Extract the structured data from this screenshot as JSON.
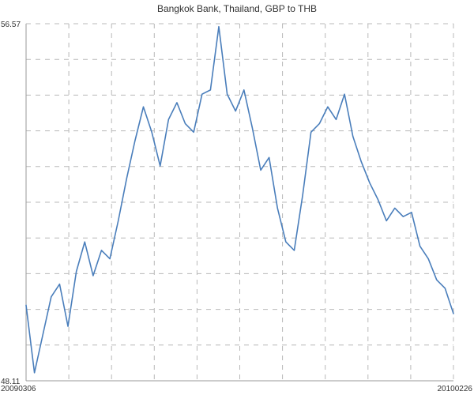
{
  "chart_data": {
    "type": "line",
    "title": "Bangkok Bank, Thailand, GBP to THB",
    "xlabel": "",
    "ylabel": "",
    "x_tick_labels": [
      "20090306",
      "20100226"
    ],
    "y_tick_labels": [
      "48.11",
      "56.57"
    ],
    "ylim": [
      48.11,
      56.57
    ],
    "grid": true,
    "legend": "none",
    "line_color": "#4a7ebb",
    "x": [
      "20090306",
      "20090313",
      "20090320",
      "20090327",
      "20090403",
      "20090410",
      "20090417",
      "20090424",
      "20090501",
      "20090508",
      "20090515",
      "20090522",
      "20090529",
      "20090605",
      "20090612",
      "20090619",
      "20090626",
      "20090703",
      "20090710",
      "20090717",
      "20090724",
      "20090731",
      "20090807",
      "20090814",
      "20090821",
      "20090828",
      "20090904",
      "20090911",
      "20090918",
      "20090925",
      "20091002",
      "20091009",
      "20091016",
      "20091023",
      "20091030",
      "20091106",
      "20091113",
      "20091120",
      "20091127",
      "20091204",
      "20091211",
      "20091218",
      "20091225",
      "20100101",
      "20100108",
      "20100115",
      "20100122",
      "20100129",
      "20100205",
      "20100212",
      "20100219",
      "20100226"
    ],
    "series": [
      {
        "values": [
          49.9,
          48.3,
          49.2,
          50.1,
          50.4,
          49.4,
          50.7,
          51.4,
          50.6,
          51.2,
          51.0,
          51.9,
          52.9,
          53.8,
          54.6,
          54.0,
          53.2,
          54.3,
          54.7,
          54.2,
          54.0,
          54.9,
          55.0,
          56.5,
          54.9,
          54.5,
          55.0,
          54.1,
          53.1,
          53.4,
          52.2,
          51.4,
          51.2,
          52.5,
          54.0,
          54.2,
          54.6,
          54.3,
          54.9,
          53.9,
          53.3,
          52.8,
          52.4,
          51.9,
          52.2,
          52.0,
          52.1,
          51.3,
          51.0,
          50.5,
          50.3,
          49.7
        ]
      }
    ]
  }
}
